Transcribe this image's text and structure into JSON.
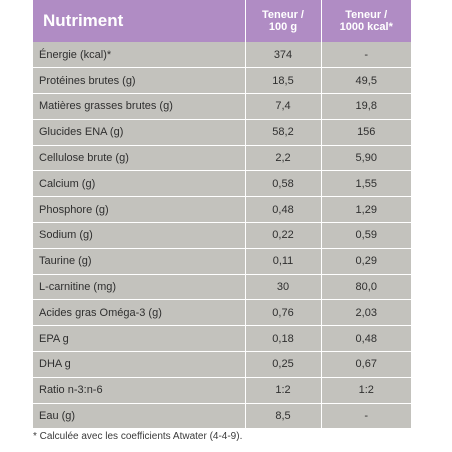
{
  "table": {
    "header": {
      "name": "Nutriment",
      "col1_line1": "Teneur /",
      "col1_line2": "100 g",
      "col2_line1": "Teneur /",
      "col2_line2": "1000 kcal*"
    },
    "rows": [
      {
        "name": "Énergie (kcal)*",
        "per100g": "374",
        "per1000kcal": "-"
      },
      {
        "name": "Protéines brutes (g)",
        "per100g": "18,5",
        "per1000kcal": "49,5"
      },
      {
        "name": "Matières grasses brutes (g)",
        "per100g": "7,4",
        "per1000kcal": "19,8"
      },
      {
        "name": "Glucides ENA (g)",
        "per100g": "58,2",
        "per1000kcal": "156"
      },
      {
        "name": "Cellulose brute (g)",
        "per100g": "2,2",
        "per1000kcal": "5,90"
      },
      {
        "name": "Calcium (g)",
        "per100g": "0,58",
        "per1000kcal": "1,55"
      },
      {
        "name": "Phosphore (g)",
        "per100g": "0,48",
        "per1000kcal": "1,29"
      },
      {
        "name": "Sodium (g)",
        "per100g": "0,22",
        "per1000kcal": "0,59"
      },
      {
        "name": "Taurine (g)",
        "per100g": "0,11",
        "per1000kcal": "0,29"
      },
      {
        "name": "L-carnitine (mg)",
        "per100g": "30",
        "per1000kcal": "80,0"
      },
      {
        "name": "Acides gras Oméga-3 (g)",
        "per100g": "0,76",
        "per1000kcal": "2,03"
      },
      {
        "name": "EPA g",
        "per100g": "0,18",
        "per1000kcal": "0,48"
      },
      {
        "name": "DHA g",
        "per100g": "0,25",
        "per1000kcal": "0,67"
      },
      {
        "name": "Ratio n-3:n-6",
        "per100g": "1:2",
        "per1000kcal": "1:2"
      },
      {
        "name": "Eau (g)",
        "per100g": "8,5",
        "per1000kcal": "-"
      }
    ]
  },
  "footnote": "* Calculée avec les coefficients Atwater (4-4-9).",
  "colors": {
    "header_bg": "#b08cc4",
    "row_bg": "#c3c2bd"
  }
}
